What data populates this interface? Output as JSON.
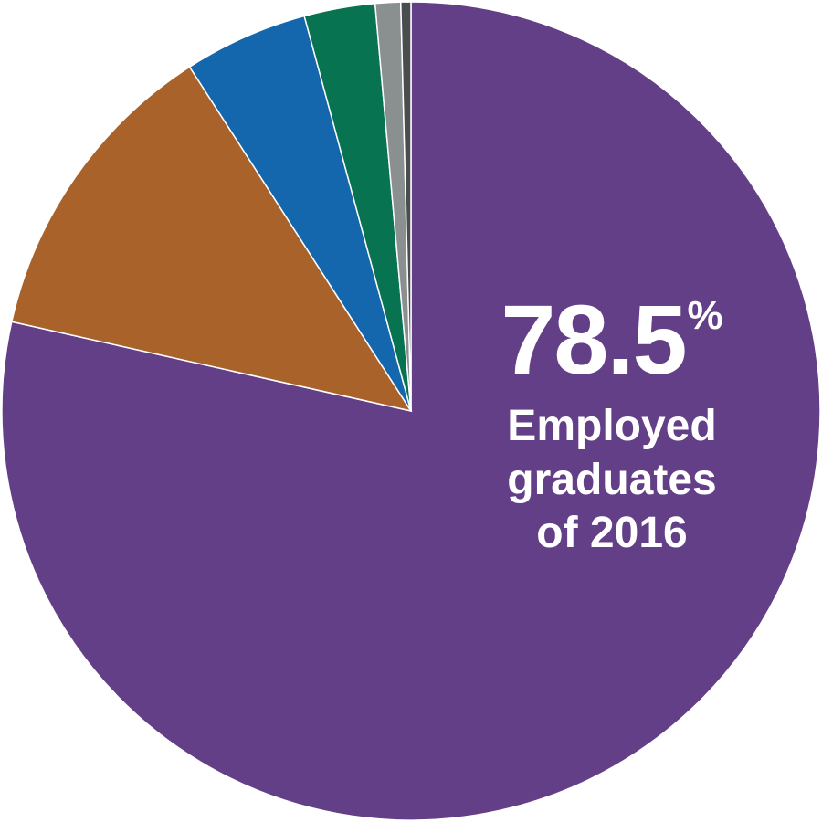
{
  "chart_data": {
    "type": "pie",
    "start_angle_deg": 90,
    "direction": "clockwise",
    "slices": [
      {
        "value": 78.5,
        "color": "#633f87"
      },
      {
        "value": 12.4,
        "color": "#a8622a"
      },
      {
        "value": 4.9,
        "color": "#1466ad"
      },
      {
        "value": 2.8,
        "color": "#077351"
      },
      {
        "value": 1.0,
        "color": "#8a8f8f"
      },
      {
        "value": 0.4,
        "color": "#4a4d4f"
      }
    ],
    "annotation": {
      "value": "78.5",
      "unit": "%",
      "lines": [
        "Employed",
        "graduates",
        "of 2016"
      ]
    }
  }
}
